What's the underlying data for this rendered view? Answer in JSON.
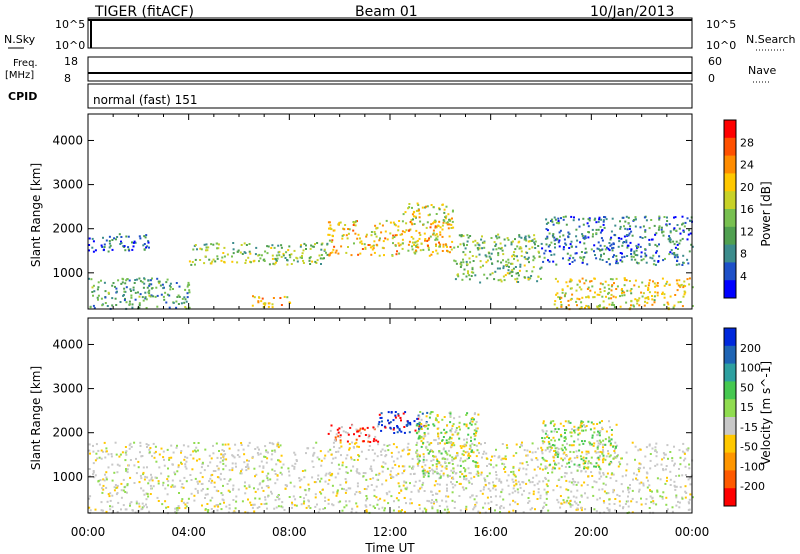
{
  "header": {
    "station": "TIGER (fitACF)",
    "beam": "Beam 01",
    "date": "10/Jan/2013"
  },
  "panels": {
    "nsky": {
      "label": "N.Sky",
      "ticks": [
        "10^5",
        "10^0"
      ]
    },
    "nsearch": {
      "label": "N.Search",
      "ticks": [
        "10^5",
        "10^0"
      ]
    },
    "freq": {
      "label_line1": "Freq.",
      "label_line2": "[MHz]",
      "ticks": [
        "18",
        "8"
      ]
    },
    "nave": {
      "label": "Nave",
      "ticks": [
        "60",
        "0"
      ]
    },
    "cpid": {
      "label": "CPID",
      "value": "normal (fast) 151"
    }
  },
  "chart_data": [
    {
      "type": "heatmap",
      "name": "power",
      "ylabel": "Slant Range [km]",
      "xlabel": "Time UT",
      "x_ticks": [
        "00:00",
        "04:00",
        "08:00",
        "12:00",
        "16:00",
        "20:00",
        "00:00"
      ],
      "xlim_hours": [
        0,
        24
      ],
      "ylim_km": [
        180,
        4600
      ],
      "y_ticks": [
        1000,
        2000,
        3000,
        4000
      ],
      "colorbar": {
        "label": "Power [dB]",
        "ticks": [
          "4",
          "8",
          "12",
          "16",
          "20",
          "24",
          "28"
        ],
        "colors": [
          "#0000ff",
          "#1e50c8",
          "#3c8c8c",
          "#50a050",
          "#78c050",
          "#c8d228",
          "#ffc800",
          "#ff8c00",
          "#ff5000",
          "#ff0000"
        ]
      },
      "bands": [
        {
          "t0": 0.0,
          "t1": 2.5,
          "r0": 1500,
          "r1": 1900,
          "level": 0.15
        },
        {
          "t0": 4.0,
          "t1": 9.5,
          "r0": 1200,
          "r1": 1700,
          "level": 0.45
        },
        {
          "t0": 9.5,
          "t1": 14.5,
          "r0": 1400,
          "r1": 2200,
          "level": 0.65
        },
        {
          "t0": 12.5,
          "t1": 14.5,
          "r0": 2100,
          "r1": 2600,
          "level": 0.55
        },
        {
          "t0": 14.5,
          "t1": 18.0,
          "r0": 800,
          "r1": 1900,
          "level": 0.4
        },
        {
          "t0": 18.0,
          "t1": 24.0,
          "r0": 1200,
          "r1": 2300,
          "level": 0.2
        },
        {
          "t0": 18.5,
          "t1": 24.0,
          "r0": 200,
          "r1": 900,
          "level": 0.6
        },
        {
          "t0": 0.0,
          "t1": 4.0,
          "r0": 200,
          "r1": 900,
          "level": 0.3
        },
        {
          "t0": 6.5,
          "t1": 8.0,
          "r0": 200,
          "r1": 500,
          "level": 0.7
        }
      ]
    },
    {
      "type": "heatmap",
      "name": "velocity",
      "ylabel": "Slant Range [km]",
      "xlabel": "Time UT",
      "x_ticks": [
        "00:00",
        "04:00",
        "08:00",
        "12:00",
        "16:00",
        "20:00",
        "00:00"
      ],
      "xlim_hours": [
        0,
        24
      ],
      "ylim_km": [
        180,
        4600
      ],
      "y_ticks": [
        1000,
        2000,
        3000,
        4000
      ],
      "colorbar": {
        "label": "Velocity [m s^-1]",
        "ticks": [
          "200",
          "100",
          "50",
          "15",
          "-15",
          "-50",
          "-100",
          "-200"
        ],
        "colors": [
          "#0028dc",
          "#1e64b4",
          "#2ea0a0",
          "#46c850",
          "#90dc50",
          "#c8c8c8",
          "#ffc800",
          "#ff9600",
          "#ff5a00",
          "#ff0000"
        ]
      },
      "bands": [
        {
          "t0": 0.0,
          "t1": 24.0,
          "r0": 200,
          "r1": 1800,
          "kind": "gray"
        },
        {
          "t0": 9.5,
          "t1": 11.5,
          "r0": 1800,
          "r1": 2200,
          "kind": "red"
        },
        {
          "t0": 11.5,
          "t1": 13.5,
          "r0": 2000,
          "r1": 2500,
          "kind": "blue"
        },
        {
          "t0": 13.0,
          "t1": 15.5,
          "r0": 1000,
          "r1": 2500,
          "kind": "green"
        },
        {
          "t0": 18.0,
          "t1": 21.0,
          "r0": 1200,
          "r1": 2300,
          "kind": "green"
        }
      ]
    }
  ]
}
